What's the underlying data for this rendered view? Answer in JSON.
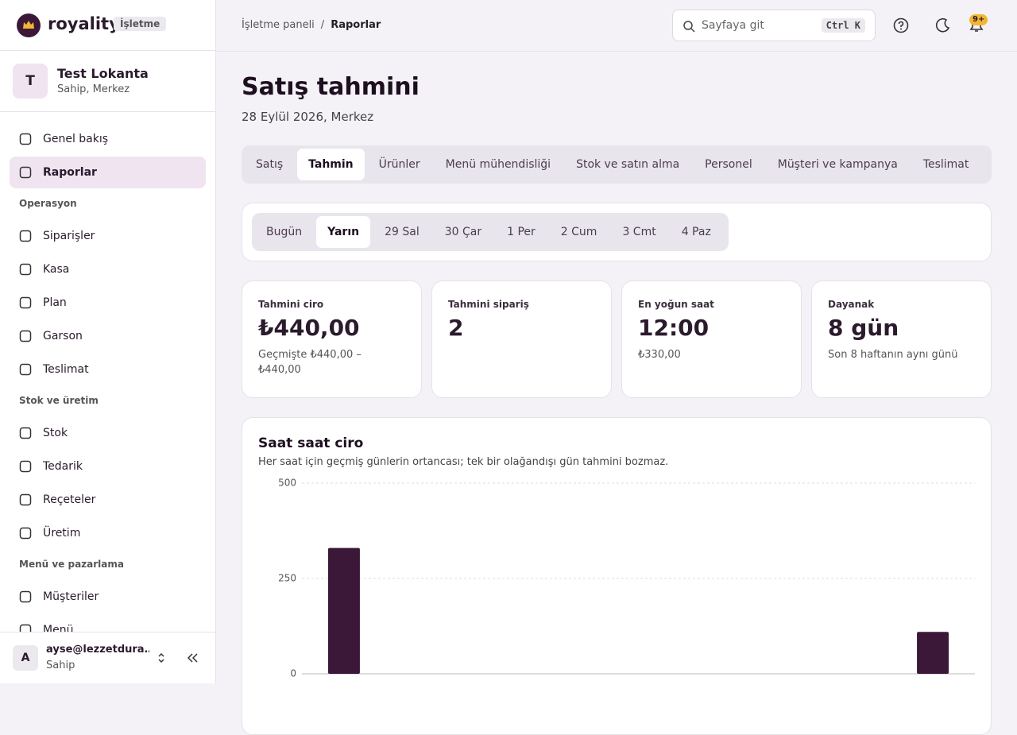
{
  "brand": {
    "name": "royality",
    "badge": "İşletme"
  },
  "business": {
    "initial": "T",
    "name": "Test Lokanta",
    "role": "Sahip, Merkez"
  },
  "nav": {
    "items": [
      "Genel bakış",
      "Raporlar"
    ],
    "active": 1,
    "sections": [
      {
        "title": "Operasyon",
        "items": [
          "Siparişler",
          "Kasa",
          "Plan",
          "Garson",
          "Teslimat"
        ]
      },
      {
        "title": "Stok ve üretim",
        "items": [
          "Stok",
          "Tedarik",
          "Reçeteler",
          "Üretim"
        ]
      },
      {
        "title": "Menü ve pazarlama",
        "items": [
          "Müşteriler",
          "Menü"
        ]
      }
    ]
  },
  "user": {
    "initial": "A",
    "email": "ayse@lezzetdura…",
    "role": "Sahip"
  },
  "breadcrumb": [
    "İşletme paneli",
    "Raporlar"
  ],
  "search": {
    "placeholder": "Sayfaya git",
    "shortcut": "Ctrl K"
  },
  "notifications": "9+",
  "page": {
    "title": "Satış tahmini",
    "subtitle": "28 Eylül 2026, Merkez"
  },
  "tabs": [
    "Satış",
    "Tahmin",
    "Ürünler",
    "Menü mühendisliği",
    "Stok ve satın alma",
    "Personel",
    "Müşteri ve kampanya",
    "Teslimat"
  ],
  "active_tab": 1,
  "day_tabs": [
    "Bugün",
    "Yarın",
    "29 Sal",
    "30 Çar",
    "1 Per",
    "2 Cum",
    "3 Cmt",
    "4 Paz"
  ],
  "active_day": 1,
  "cards": [
    {
      "label": "Tahmini ciro",
      "value": "₺440,00",
      "note": "Geçmişte ₺440,00 – ₺440,00"
    },
    {
      "label": "Tahmini sipariş",
      "value": "2"
    },
    {
      "label": "En yoğun saat",
      "value": "12:00",
      "note": "₺330,00"
    },
    {
      "label": "Dayanak",
      "value": "8 gün",
      "note": "Son 8 haftanın aynı günü"
    }
  ],
  "chart_data": {
    "type": "bar",
    "title": "Saat saat ciro",
    "subtitle": "Her saat için geçmiş günlerin ortancası; tek bir olağandışı gün tahmini bozmaz.",
    "categories": [
      null,
      null,
      null,
      null,
      null,
      null,
      null,
      null
    ],
    "values": [
      330,
      0,
      0,
      0,
      0,
      0,
      0,
      110
    ],
    "color": "#3b1838",
    "ylim": [
      0,
      500
    ],
    "yticks": [
      0,
      250,
      500
    ],
    "grid": true
  }
}
